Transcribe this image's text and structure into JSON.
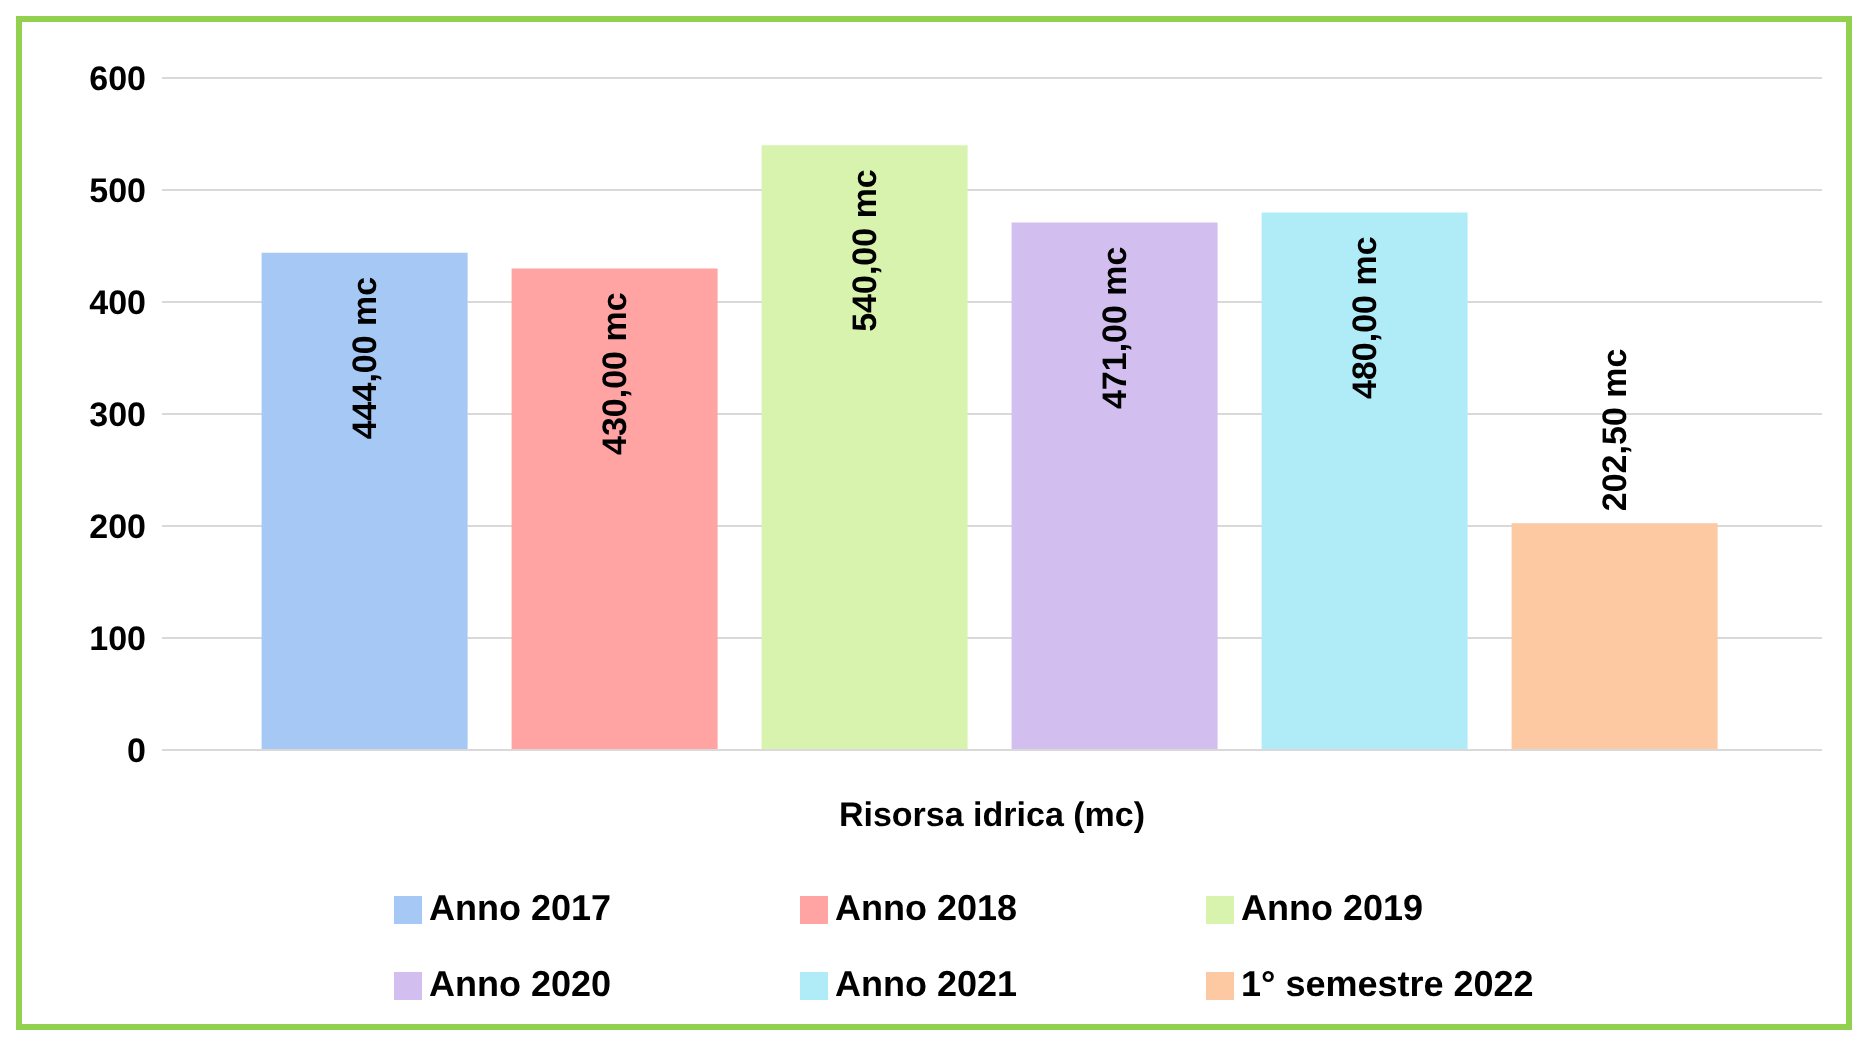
{
  "chart_data": {
    "type": "bar",
    "categories": [
      "Risorsa idrica (mc)"
    ],
    "series": [
      {
        "name": "Anno 2017",
        "color": "#a6c8f5",
        "values": [
          444
        ],
        "value_labels": [
          "444,00 mc"
        ]
      },
      {
        "name": "Anno 2018",
        "color": "#ffa3a3",
        "values": [
          430
        ],
        "value_labels": [
          "430,00 mc"
        ]
      },
      {
        "name": "Anno 2019",
        "color": "#d8f3ad",
        "values": [
          540
        ],
        "value_labels": [
          "540,00 mc"
        ]
      },
      {
        "name": "Anno 2020",
        "color": "#d2bff0",
        "values": [
          471
        ],
        "value_labels": [
          "471,00 mc"
        ]
      },
      {
        "name": "Anno 2021",
        "color": "#b0ecf8",
        "values": [
          480
        ],
        "value_labels": [
          "480,00 mc"
        ]
      },
      {
        "name": "1° semestre 2022",
        "color": "#fcc9a2",
        "values": [
          202.5
        ],
        "value_labels": [
          "202,50 mc"
        ]
      }
    ],
    "ylim": [
      0,
      600
    ],
    "yticks": [
      0,
      100,
      200,
      300,
      400,
      500,
      600
    ],
    "grid": "y",
    "legend": "bottom"
  }
}
